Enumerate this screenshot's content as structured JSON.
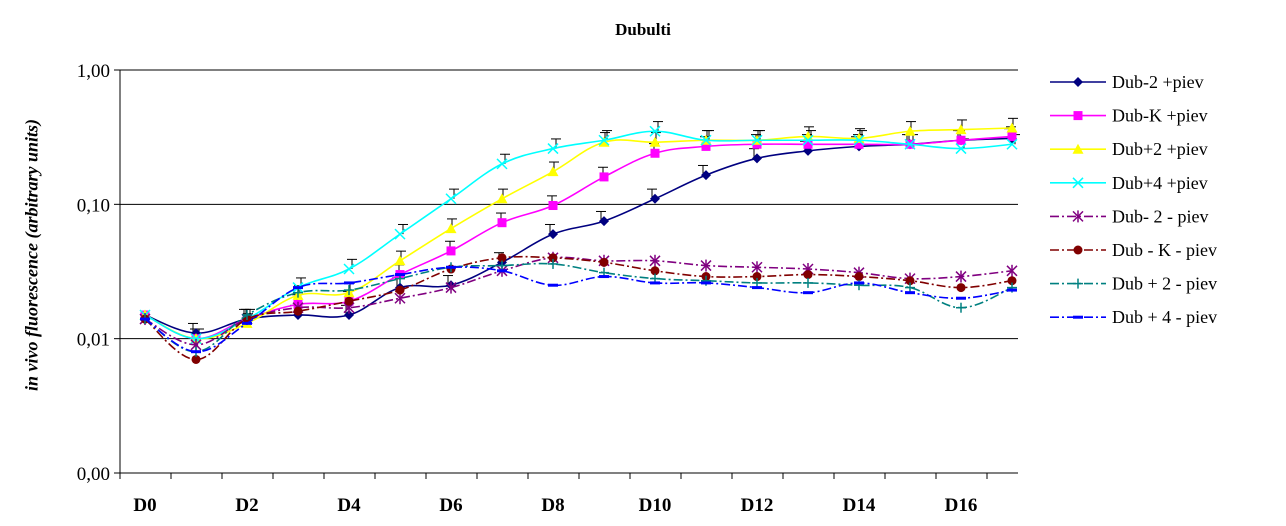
{
  "chart_data": {
    "type": "line",
    "title": "Dubulti",
    "xlabel": "",
    "ylabel": "in vivo fluorescence (arbitrary units)",
    "yscale": "log",
    "ylim": [
      0.001,
      1
    ],
    "yticks": [
      1,
      0.1,
      0.01,
      0.001
    ],
    "ytick_labels": [
      "1,00",
      "0,10",
      "0,01",
      "0,00"
    ],
    "x": [
      0,
      1,
      2,
      3,
      4,
      5,
      6,
      7,
      8,
      9,
      10,
      11,
      12,
      13,
      14,
      15,
      16,
      17
    ],
    "xticks": [
      0,
      2,
      4,
      6,
      8,
      10,
      12,
      14,
      16
    ],
    "xtick_labels": [
      "D0",
      "D2",
      "D4",
      "D6",
      "D8",
      "D10",
      "D12",
      "D14",
      "D16"
    ],
    "grid": "horizontal",
    "legend": "right",
    "series": [
      {
        "name": "Dub-2 +piev",
        "color": "#000080",
        "dash": "solid",
        "marker": "diamond",
        "values": [
          0.015,
          0.011,
          0.014,
          0.015,
          0.015,
          0.024,
          0.025,
          0.037,
          0.06,
          0.075,
          0.11,
          0.165,
          0.22,
          0.25,
          0.27,
          0.28,
          0.3,
          0.31
        ]
      },
      {
        "name": "Dub-K +piev",
        "color": "#ff00ff",
        "dash": "solid",
        "marker": "square",
        "values": [
          0.015,
          0.01,
          0.014,
          0.018,
          0.019,
          0.03,
          0.045,
          0.073,
          0.098,
          0.16,
          0.24,
          0.27,
          0.28,
          0.28,
          0.28,
          0.28,
          0.3,
          0.32
        ]
      },
      {
        "name": "Dub+2 +piev",
        "color": "#ffff00",
        "dash": "solid",
        "marker": "triangle",
        "values": [
          0.015,
          0.01,
          0.013,
          0.021,
          0.022,
          0.038,
          0.066,
          0.11,
          0.175,
          0.29,
          0.29,
          0.3,
          0.3,
          0.32,
          0.31,
          0.35,
          0.36,
          0.37
        ]
      },
      {
        "name": "Dub+4 +piev",
        "color": "#00ffff",
        "dash": "solid",
        "marker": "x",
        "values": [
          0.015,
          0.01,
          0.014,
          0.024,
          0.033,
          0.06,
          0.11,
          0.2,
          0.26,
          0.3,
          0.35,
          0.3,
          0.3,
          0.3,
          0.3,
          0.28,
          0.26,
          0.28
        ]
      },
      {
        "name": "Dub- 2 - piev",
        "color": "#800080",
        "dash": "dashdot",
        "marker": "star",
        "values": [
          0.014,
          0.009,
          0.014,
          0.017,
          0.017,
          0.02,
          0.024,
          0.032,
          0.04,
          0.038,
          0.038,
          0.035,
          0.034,
          0.033,
          0.031,
          0.028,
          0.029,
          0.032
        ]
      },
      {
        "name": "Dub - K - piev",
        "color": "#800000",
        "dash": "dashdot",
        "marker": "circle",
        "values": [
          0.014,
          0.007,
          0.014,
          0.016,
          0.019,
          0.023,
          0.033,
          0.04,
          0.04,
          0.037,
          0.032,
          0.029,
          0.029,
          0.03,
          0.029,
          0.027,
          0.024,
          0.027
        ]
      },
      {
        "name": "Dub + 2 - piev",
        "color": "#008080",
        "dash": "dashdot",
        "marker": "plus",
        "values": [
          0.014,
          0.008,
          0.015,
          0.022,
          0.023,
          0.028,
          0.034,
          0.035,
          0.036,
          0.031,
          0.028,
          0.027,
          0.026,
          0.026,
          0.025,
          0.024,
          0.017,
          0.024
        ]
      },
      {
        "name": "Dub + 4 - piev",
        "color": "#0000ff",
        "dash": "dashdot",
        "marker": "dash",
        "values": [
          0.014,
          0.008,
          0.013,
          0.024,
          0.026,
          0.03,
          0.034,
          0.032,
          0.025,
          0.029,
          0.026,
          0.026,
          0.024,
          0.022,
          0.026,
          0.022,
          0.02,
          0.023
        ]
      }
    ]
  }
}
